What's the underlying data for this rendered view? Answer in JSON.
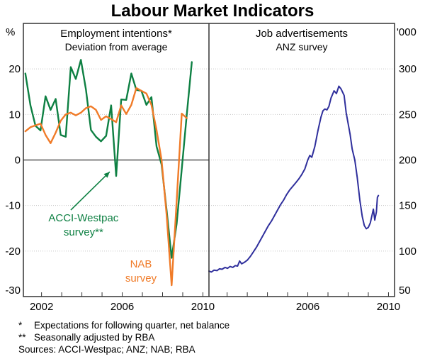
{
  "title": "Labour Market Indicators",
  "footnotes": [
    {
      "marker": "*",
      "text": "Expectations for following quarter, net balance"
    },
    {
      "marker": "**",
      "text": "Seasonally adjusted by RBA"
    },
    {
      "marker": "",
      "text": "Sources: ACCI-Westpac; ANZ; NAB; RBA"
    }
  ],
  "colors": {
    "acci_westpac_green": "#0E8043",
    "nab_orange": "#F07B28",
    "anz_blue": "#2F2F9C",
    "grid": "#C6C6C6",
    "zero_line": "#555555",
    "border": "#333333",
    "text": "#000000",
    "background": "#FFFFFF"
  },
  "chart_data": [
    {
      "type": "line",
      "title": "Employment intentions*",
      "subtitle": "Deviation from average",
      "ylabel": "%",
      "yside": "left",
      "ylim": [
        -30,
        30
      ],
      "xlim": [
        2001.1,
        2010.3
      ],
      "grid": true,
      "gridlines": [
        20,
        10,
        0,
        -10,
        -20
      ],
      "zero_line": 0,
      "yticks": [
        {
          "v": 20,
          "text": "20"
        },
        {
          "v": 10,
          "text": "10"
        },
        {
          "v": 0,
          "text": "0"
        },
        {
          "v": -10,
          "text": "-10"
        },
        {
          "v": -20,
          "text": "-20"
        },
        {
          "v": -30,
          "text": "-30"
        }
      ],
      "xticks": [
        2002,
        2003,
        2004,
        2005,
        2006,
        2007,
        2008,
        2009,
        2010
      ],
      "xlabels": [
        {
          "x": 2002,
          "text": "2002"
        },
        {
          "x": 2006,
          "text": "2006"
        },
        {
          "x": 2010,
          "text": "2010"
        }
      ],
      "series": [
        {
          "name": "acci-westpac-survey",
          "legend": "ACCI-Westpac survey**",
          "color": "#0E8043",
          "width": 2.4,
          "points": [
            [
              2001.2,
              19
            ],
            [
              2001.45,
              12
            ],
            [
              2001.7,
              7.5
            ],
            [
              2001.95,
              6.5
            ],
            [
              2002.2,
              14
            ],
            [
              2002.45,
              11
            ],
            [
              2002.7,
              13.4
            ],
            [
              2002.95,
              5.5
            ],
            [
              2003.2,
              5.1
            ],
            [
              2003.45,
              20.4
            ],
            [
              2003.7,
              17.8
            ],
            [
              2003.95,
              22
            ],
            [
              2004.2,
              15.5
            ],
            [
              2004.45,
              6.6
            ],
            [
              2004.7,
              5.1
            ],
            [
              2004.95,
              4.1
            ],
            [
              2005.2,
              5.3
            ],
            [
              2005.45,
              12
            ],
            [
              2005.7,
              -3.5
            ],
            [
              2005.95,
              13.3
            ],
            [
              2006.2,
              13.2
            ],
            [
              2006.45,
              19
            ],
            [
              2006.7,
              15.4
            ],
            [
              2006.95,
              15.2
            ],
            [
              2007.2,
              12.1
            ],
            [
              2007.45,
              13.8
            ],
            [
              2007.7,
              3
            ],
            [
              2007.95,
              -1
            ],
            [
              2008.2,
              -11
            ],
            [
              2008.45,
              -21.5
            ],
            [
              2008.7,
              -14
            ],
            [
              2008.95,
              -2
            ],
            [
              2009.2,
              10
            ],
            [
              2009.45,
              21.5
            ]
          ]
        },
        {
          "name": "nab-survey",
          "legend": "NAB survey",
          "color": "#F07B28",
          "width": 2.4,
          "points": [
            [
              2001.2,
              6.3
            ],
            [
              2001.45,
              7.2
            ],
            [
              2001.7,
              7.6
            ],
            [
              2001.95,
              8
            ],
            [
              2002.2,
              5.5
            ],
            [
              2002.45,
              3.7
            ],
            [
              2002.7,
              6
            ],
            [
              2002.95,
              8.6
            ],
            [
              2003.2,
              10
            ],
            [
              2003.45,
              10.4
            ],
            [
              2003.7,
              9.8
            ],
            [
              2003.95,
              10.4
            ],
            [
              2004.2,
              11.4
            ],
            [
              2004.45,
              11.8
            ],
            [
              2004.7,
              11
            ],
            [
              2004.95,
              8.8
            ],
            [
              2005.2,
              9.6
            ],
            [
              2005.45,
              9
            ],
            [
              2005.7,
              8.3
            ],
            [
              2005.95,
              12
            ],
            [
              2006.2,
              10.1
            ],
            [
              2006.45,
              12.1
            ],
            [
              2006.7,
              15.8
            ],
            [
              2006.95,
              15.2
            ],
            [
              2007.2,
              14.6
            ],
            [
              2007.45,
              12.1
            ],
            [
              2007.7,
              6.6
            ],
            [
              2007.95,
              0
            ],
            [
              2008.2,
              -12
            ],
            [
              2008.45,
              -27.5
            ],
            [
              2008.7,
              -9
            ],
            [
              2008.95,
              10.2
            ],
            [
              2009.2,
              9.2
            ]
          ]
        }
      ],
      "annotations": [
        {
          "type": "arrow",
          "name": "acci-westpac-arrow",
          "from": [
            2003.45,
            -11.0
          ],
          "to": [
            2005.38,
            -2.6
          ],
          "color": "#0E8043"
        },
        {
          "type": "label",
          "name": "acci-westpac-label",
          "lines": [
            "ACCI-Westpac",
            "survey**"
          ],
          "at": [
            2004.08,
            -12.7
          ],
          "color": "#0E8043"
        },
        {
          "type": "label",
          "name": "nab-label",
          "lines": [
            "NAB",
            "survey"
          ],
          "at": [
            2006.93,
            -22.8
          ],
          "color": "#F07B28"
        }
      ]
    },
    {
      "type": "line",
      "title": "Job advertisements",
      "subtitle": "ANZ survey",
      "ylabel": "'000",
      "yside": "right",
      "ylim": [
        50,
        350
      ],
      "xlim": [
        2001.1,
        2010.3
      ],
      "grid": true,
      "gridlines": [
        300,
        250,
        200,
        150,
        100
      ],
      "zero_line": null,
      "yticks": [
        {
          "v": 300,
          "text": "300"
        },
        {
          "v": 250,
          "text": "250"
        },
        {
          "v": 200,
          "text": "200"
        },
        {
          "v": 150,
          "text": "150"
        },
        {
          "v": 100,
          "text": "100"
        },
        {
          "v": 50,
          "text": "50"
        }
      ],
      "xticks": [
        2002,
        2003,
        2004,
        2005,
        2006,
        2007,
        2008,
        2009,
        2010
      ],
      "xlabels": [
        {
          "x": 2006,
          "text": "2006"
        },
        {
          "x": 2010,
          "text": "2010"
        }
      ],
      "series": [
        {
          "name": "anz-job-ads",
          "legend": "ANZ survey",
          "color": "#2F2F9C",
          "width": 2,
          "points": [
            [
              2001.1,
              78
            ],
            [
              2001.22,
              77
            ],
            [
              2001.35,
              79
            ],
            [
              2001.5,
              78.5
            ],
            [
              2001.62,
              80.5
            ],
            [
              2001.75,
              80
            ],
            [
              2001.9,
              82
            ],
            [
              2002.02,
              81
            ],
            [
              2002.15,
              83
            ],
            [
              2002.28,
              82
            ],
            [
              2002.4,
              84
            ],
            [
              2002.52,
              83.5
            ],
            [
              2002.62,
              89
            ],
            [
              2002.72,
              86
            ],
            [
              2002.85,
              87.5
            ],
            [
              2003.0,
              90
            ],
            [
              2003.15,
              94
            ],
            [
              2003.3,
              99
            ],
            [
              2003.45,
              104
            ],
            [
              2003.6,
              110
            ],
            [
              2003.75,
              116
            ],
            [
              2003.9,
              122
            ],
            [
              2004.05,
              128
            ],
            [
              2004.2,
              133
            ],
            [
              2004.35,
              139
            ],
            [
              2004.5,
              145
            ],
            [
              2004.65,
              151
            ],
            [
              2004.8,
              156
            ],
            [
              2004.95,
              162
            ],
            [
              2005.1,
              167
            ],
            [
              2005.25,
              171
            ],
            [
              2005.4,
              175
            ],
            [
              2005.55,
              179
            ],
            [
              2005.7,
              184
            ],
            [
              2005.85,
              190
            ],
            [
              2006.0,
              200
            ],
            [
              2006.1,
              205
            ],
            [
              2006.2,
              203
            ],
            [
              2006.35,
              215
            ],
            [
              2006.5,
              232
            ],
            [
              2006.65,
              247
            ],
            [
              2006.75,
              254
            ],
            [
              2006.85,
              256
            ],
            [
              2006.95,
              255
            ],
            [
              2007.05,
              259
            ],
            [
              2007.15,
              268
            ],
            [
              2007.3,
              276
            ],
            [
              2007.42,
              273
            ],
            [
              2007.54,
              281
            ],
            [
              2007.65,
              278
            ],
            [
              2007.8,
              271
            ],
            [
              2007.9,
              252
            ],
            [
              2008.0,
              240
            ],
            [
              2008.1,
              228
            ],
            [
              2008.2,
              212
            ],
            [
              2008.33,
              200
            ],
            [
              2008.45,
              181
            ],
            [
              2008.58,
              156
            ],
            [
              2008.7,
              138
            ],
            [
              2008.8,
              128
            ],
            [
              2008.9,
              124.5
            ],
            [
              2009.0,
              126
            ],
            [
              2009.1,
              131
            ],
            [
              2009.18,
              139
            ],
            [
              2009.25,
              146
            ],
            [
              2009.32,
              134
            ],
            [
              2009.4,
              143
            ],
            [
              2009.45,
              159
            ],
            [
              2009.5,
              161
            ]
          ]
        }
      ],
      "annotations": []
    }
  ]
}
